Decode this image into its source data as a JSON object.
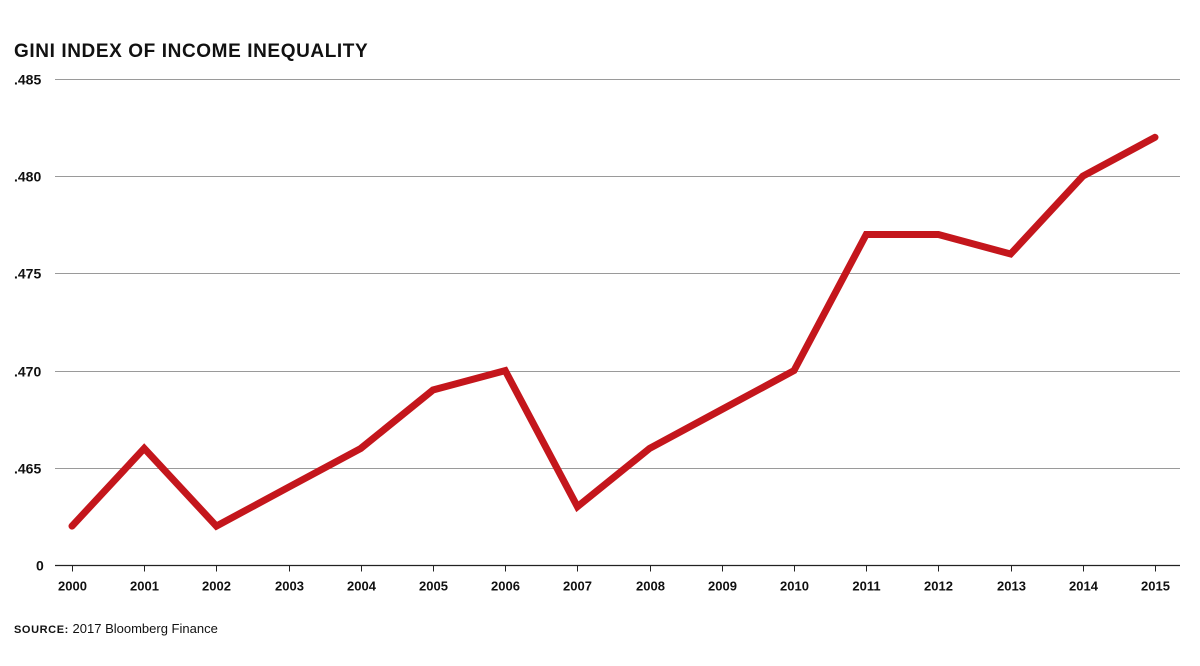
{
  "chart_data": {
    "type": "line",
    "title": "GINI INDEX OF INCOME INEQUALITY",
    "xlabel": "",
    "ylabel": "",
    "x": [
      "2000",
      "2001",
      "2002",
      "2003",
      "2004",
      "2005",
      "2006",
      "2007",
      "2008",
      "2009",
      "2010",
      "2011",
      "2012",
      "2013",
      "2014",
      "2015"
    ],
    "series": [
      {
        "values": [
          0.462,
          0.466,
          0.462,
          0.464,
          0.466,
          0.469,
          0.47,
          0.463,
          0.466,
          0.468,
          0.47,
          0.477,
          0.477,
          0.476,
          0.48,
          0.482
        ]
      }
    ],
    "ylim": [
      0.46,
      0.485
    ],
    "yticks": [
      0.465,
      0.47,
      0.475,
      0.48,
      0.485
    ],
    "ytick_labels": [
      ".465",
      ".470",
      ".475",
      ".480",
      ".485"
    ],
    "baseline_label": "0",
    "grid": true,
    "line_color": "#c4161c",
    "grid_color": "#9a9a9a"
  },
  "source": {
    "label": "SOURCE:",
    "text": " 2017 Bloomberg Finance"
  }
}
